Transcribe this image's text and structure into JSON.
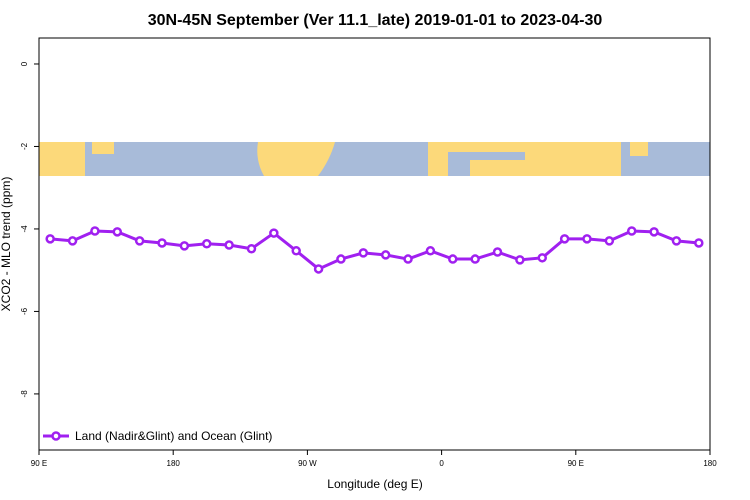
{
  "chart_data": {
    "type": "line",
    "title": "30N-45N September (Ver 11.1_late)   2019-01-01 to 2023-04-30",
    "x_label": "Longitude (deg E)",
    "y_label": "XCO2 - MLO trend (ppm)",
    "xlim": [
      90,
      540
    ],
    "xticks": [
      {
        "value": 90,
        "label": "90 E"
      },
      180,
      {
        "value": 270,
        "label": "90 W"
      },
      {
        "value": 360,
        "label": "0"
      },
      {
        "value": 450,
        "label": "90 E"
      },
      {
        "value": 540,
        "label": "180"
      }
    ],
    "ylim": [
      -9.36,
      0.63
    ],
    "yticks": [
      0,
      -2,
      -4,
      -6,
      -8
    ],
    "grid": false,
    "legend_position": "bottom-left",
    "x": [
      97.5,
      112.5,
      127.5,
      142.5,
      157.5,
      172.5,
      187.5,
      202.5,
      217.5,
      232.5,
      247.5,
      262.5,
      277.5,
      292.5,
      307.5,
      322.5,
      337.5,
      352.5,
      367.5,
      382.5,
      397.5,
      412.5,
      427.5,
      442.5,
      457.5,
      472.5,
      487.5,
      502.5,
      517.5,
      532.5
    ],
    "series": [
      {
        "name": "Land (Nadir&Glint) and Ocean (Glint)",
        "color": "#a020f0",
        "values": [
          -4.24,
          -4.29,
          -4.05,
          -4.07,
          -4.29,
          -4.34,
          -4.41,
          -4.36,
          -4.39,
          -4.48,
          -4.1,
          -4.53,
          -4.97,
          -4.73,
          -4.58,
          -4.63,
          -4.73,
          -4.53,
          -4.73,
          -4.73,
          -4.56,
          -4.75,
          -4.7,
          -4.24,
          -4.24,
          -4.29,
          -4.05,
          -4.07,
          -4.29,
          -4.34
        ]
      }
    ]
  }
}
